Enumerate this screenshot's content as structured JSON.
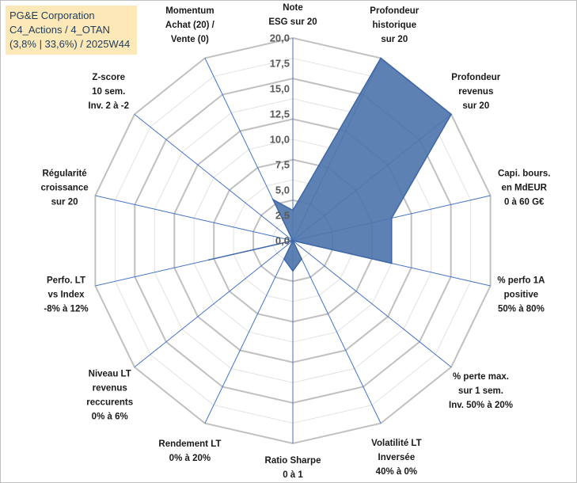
{
  "info": {
    "line1": "PG&E Corporation",
    "line2": "C4_Actions / 4_OTAN",
    "line3": "(3,8% | 33,6%) / 2025W44"
  },
  "colors": {
    "fill": "#4f76ad",
    "stroke": "#3f67a8",
    "grid": "#c8c8c8",
    "spoke": "#4472c4"
  },
  "chart_data": {
    "type": "radar",
    "title": "",
    "r_range": [
      0,
      20
    ],
    "r_ticks": [
      "0,0",
      "2,5",
      "5,0",
      "7,5",
      "10,0",
      "12,5",
      "15,0",
      "17,5",
      "20,0"
    ],
    "grid_levels": 10,
    "axes": [
      {
        "lines": [
          "Note",
          "ESG sur 20"
        ]
      },
      {
        "lines": [
          "Profondeur",
          "historique",
          "sur 20"
        ]
      },
      {
        "lines": [
          "Profondeur",
          "revenus",
          "sur 20"
        ]
      },
      {
        "lines": [
          "Capi. bours.",
          "en MdEUR",
          "0 à 60 G€"
        ]
      },
      {
        "lines": [
          "% perfo 1A",
          "positive",
          "50% à 80%"
        ]
      },
      {
        "lines": [
          "% perte max.",
          "sur 1 sem.",
          "Inv. 50% à 20%"
        ]
      },
      {
        "lines": [
          "Volatilité LT",
          "Inversée",
          "40% à 0%"
        ]
      },
      {
        "lines": [
          "Ratio Sharpe",
          "0 à 1"
        ]
      },
      {
        "lines": [
          "Rendement LT",
          "0% à 20%"
        ]
      },
      {
        "lines": [
          "Niveau LT",
          "revenus",
          "reccurents",
          "0% à 6%"
        ]
      },
      {
        "lines": [
          "Perfo. LT",
          "vs Index",
          "-8% à 12%"
        ]
      },
      {
        "lines": [
          "Régularité",
          "croissance",
          "sur 20"
        ]
      },
      {
        "lines": [
          "Z-score",
          "10 sem.",
          "Inv. 2 à -2"
        ]
      },
      {
        "lines": [
          "Momentum",
          "Achat (20) /",
          "Vente (0)"
        ]
      }
    ],
    "series": [
      {
        "name": "PG&E Corporation",
        "values": [
          3,
          20,
          20,
          10,
          10,
          0,
          2,
          3,
          2,
          0,
          8.5,
          0,
          0,
          4.5
        ]
      }
    ]
  }
}
